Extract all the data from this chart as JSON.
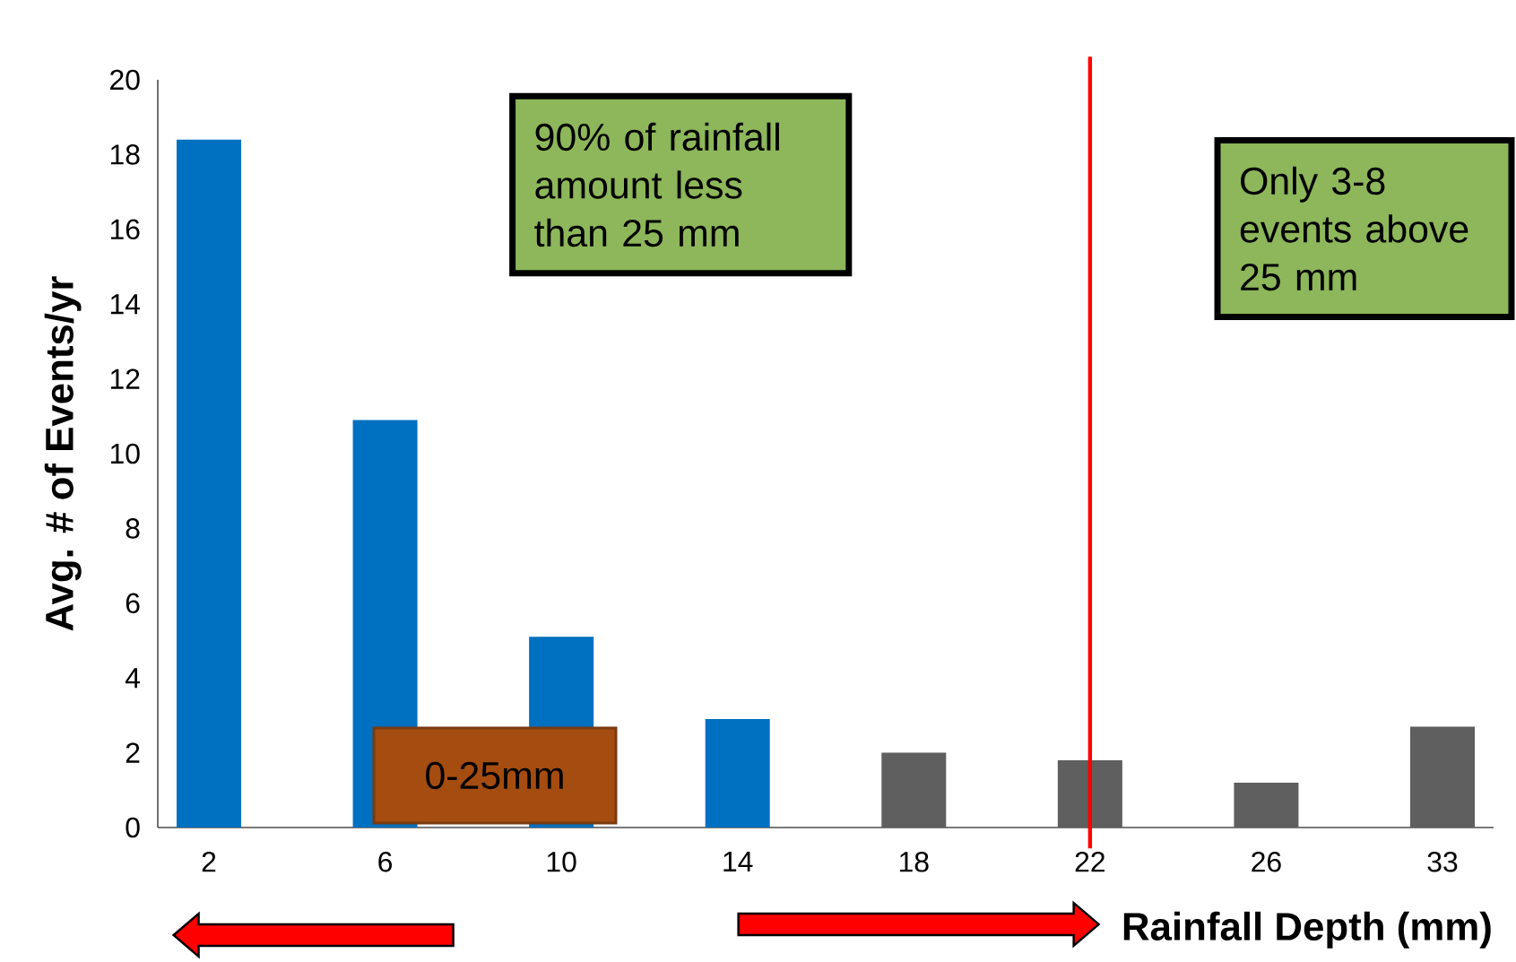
{
  "chart_data": {
    "type": "bar",
    "xlabel": "Rainfall Depth (mm)",
    "ylabel": "Avg. # of Events/yr",
    "categories": [
      "2",
      "6",
      "10",
      "14",
      "18",
      "22",
      "26",
      "33"
    ],
    "values": [
      18.4,
      10.9,
      5.1,
      2.9,
      2.0,
      1.8,
      1.2,
      2.7
    ],
    "colors": [
      "#0070c0",
      "#0070c0",
      "#0070c0",
      "#0070c0",
      "#5f5f5f",
      "#5f5f5f",
      "#5f5f5f",
      "#5f5f5f"
    ],
    "ylim": [
      0,
      20
    ],
    "yticks": [
      0,
      2,
      4,
      6,
      8,
      10,
      12,
      14,
      16,
      18,
      20
    ],
    "ref_lines": [
      {
        "axis": "x",
        "value": "22",
        "color": "#ff0000"
      }
    ],
    "annotations": [
      "90% of rainfall amount less than 25 mm",
      "Only 3-8 events above 25 mm",
      "0-25mm"
    ]
  }
}
